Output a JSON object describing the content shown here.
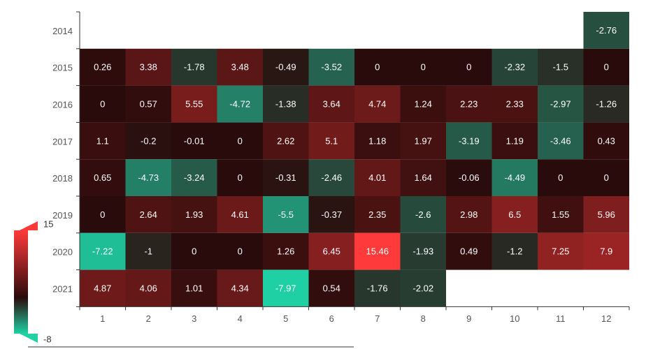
{
  "chart_data": {
    "type": "heatmap",
    "title": "",
    "xlabel": "",
    "ylabel": "",
    "x_categories": [
      "1",
      "2",
      "3",
      "4",
      "5",
      "6",
      "7",
      "8",
      "9",
      "10",
      "11",
      "12"
    ],
    "y_categories": [
      "2014",
      "2015",
      "2016",
      "2017",
      "2018",
      "2019",
      "2020",
      "2021"
    ],
    "values": [
      [
        null,
        null,
        null,
        null,
        null,
        null,
        null,
        null,
        null,
        null,
        null,
        -2.76
      ],
      [
        0.26,
        3.38,
        -1.78,
        3.48,
        -0.49,
        -3.52,
        0,
        0,
        0,
        -2.32,
        -1.5,
        0
      ],
      [
        0,
        0.57,
        5.55,
        -4.72,
        -1.38,
        3.64,
        4.74,
        1.24,
        2.23,
        2.33,
        -2.97,
        -1.26
      ],
      [
        1.1,
        -0.2,
        -0.01,
        0,
        2.62,
        5.1,
        1.18,
        1.97,
        -3.19,
        1.19,
        -3.46,
        0.43
      ],
      [
        0.65,
        -4.73,
        -3.24,
        0,
        -0.31,
        -2.46,
        4.01,
        1.64,
        -0.06,
        -4.49,
        0,
        0
      ],
      [
        0,
        2.64,
        1.93,
        4.61,
        -5.5,
        -0.37,
        2.35,
        -2.6,
        2.98,
        6.5,
        1.55,
        5.96
      ],
      [
        -7.22,
        -1,
        0,
        0,
        1.26,
        6.45,
        15.46,
        -1.93,
        0.49,
        -1.2,
        7.25,
        7.9
      ],
      [
        4.87,
        4.06,
        1.01,
        4.34,
        -7.97,
        0.54,
        -1.76,
        -2.02,
        null,
        null,
        null,
        null
      ]
    ],
    "visual_map": {
      "min": -8,
      "max": 15,
      "min_label": "-8",
      "max_label": "15",
      "colors": [
        "#1fd1a5",
        "#2a0b0b",
        "#ff3a3a"
      ],
      "mid_value": 0
    }
  }
}
